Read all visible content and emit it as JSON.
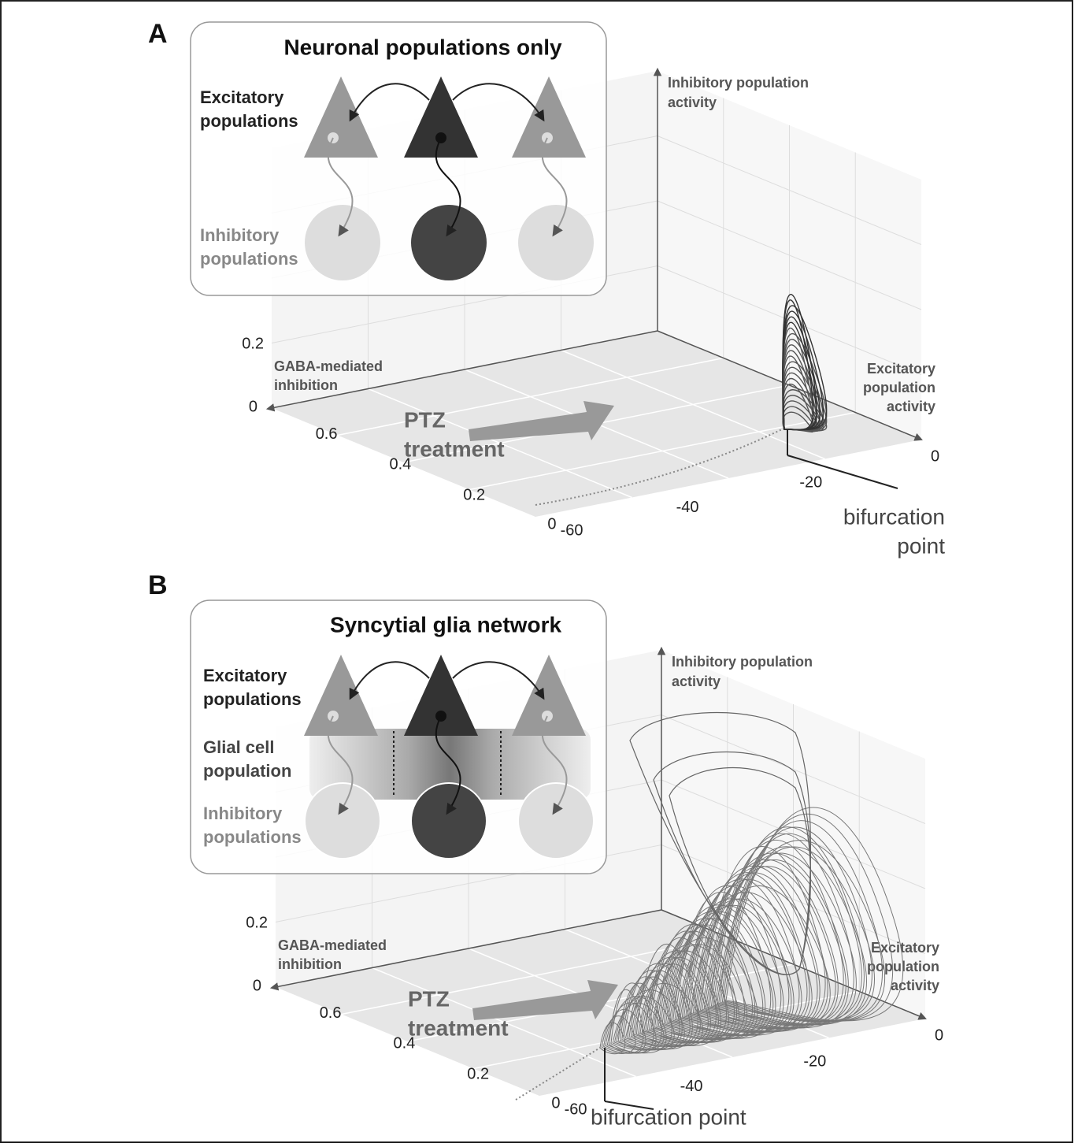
{
  "panels": [
    {
      "label": "A",
      "inset": {
        "title": "Neuronal populations only",
        "excitatory": [
          "Excitatory",
          "populations"
        ],
        "inhibitory": [
          "Inhibitory",
          "populations"
        ]
      },
      "axes": {
        "z_label": [
          "Inhibitory population",
          "activity"
        ],
        "y_label": [
          "GABA-mediated",
          "inhibition"
        ],
        "x_label": [
          "Excitatory",
          "population",
          "activity"
        ],
        "z_ticks": [
          0,
          0.2
        ],
        "y_ticks": [
          0.6,
          0.4,
          0.2,
          0
        ],
        "x_ticks": [
          -60,
          -40,
          -20,
          0
        ]
      },
      "arrow_label": [
        "PTZ",
        "treatment"
      ],
      "bifurcation": [
        "bifurcation",
        "point"
      ]
    },
    {
      "label": "B",
      "inset": {
        "title": "Syncytial glia network",
        "excitatory": [
          "Excitatory",
          "populations"
        ],
        "glia": [
          "Glial cell",
          "population"
        ],
        "inhibitory": [
          "Inhibitory",
          "populations"
        ]
      },
      "axes": {
        "z_label": [
          "Inhibitory population",
          "activity"
        ],
        "y_label": [
          "GABA-mediated",
          "inhibition"
        ],
        "x_label": [
          "Excitatory",
          "population",
          "activity"
        ],
        "z_ticks": [
          0,
          0.2
        ],
        "y_ticks": [
          0.6,
          0.4,
          0.2,
          0
        ],
        "x_ticks": [
          -60,
          -40,
          -20,
          0
        ]
      },
      "arrow_label": [
        "PTZ",
        "treatment"
      ],
      "bifurcation": [
        "bifurcation point"
      ]
    }
  ]
}
